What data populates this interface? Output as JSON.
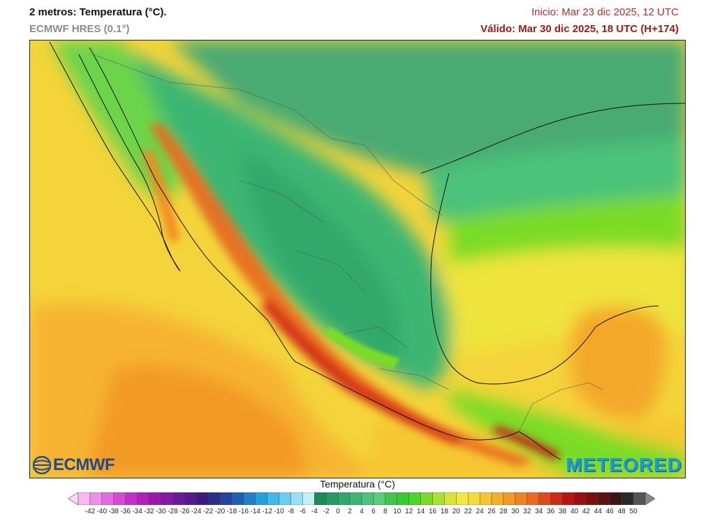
{
  "header": {
    "title": "2 metros: Temperatura (°C).",
    "model": "ECMWF HRES (0.1°)",
    "init": "Inicio: Mar 23 dic 2025, 12 UTC",
    "valid": "Válido: Mar 30 dic 2025, 18 UTC (H+174)"
  },
  "logos": {
    "left": "ECMWF",
    "right": "METEORED"
  },
  "legend": {
    "title": "Temperatura (°C)",
    "ticks": [
      "-42",
      "-40",
      "-38",
      "-36",
      "-34",
      "-32",
      "-30",
      "-28",
      "-26",
      "-24",
      "-22",
      "-20",
      "-18",
      "-16",
      "-14",
      "-12",
      "-10",
      "-8",
      "-6",
      "-4",
      "-2",
      "0",
      "2",
      "4",
      "6",
      "8",
      "10",
      "12",
      "14",
      "16",
      "18",
      "20",
      "22",
      "24",
      "26",
      "28",
      "30",
      "32",
      "34",
      "36",
      "38",
      "40",
      "42",
      "44",
      "46",
      "48",
      "50"
    ],
    "colors": [
      "#ffd9ff",
      "#f7b8f4",
      "#ee8fe9",
      "#e46bde",
      "#d848d2",
      "#c62ec6",
      "#b21fb9",
      "#9a18ae",
      "#821aa5",
      "#6a1a9a",
      "#561a8e",
      "#3e1980",
      "#2a2e8a",
      "#24449e",
      "#2060b4",
      "#2080c8",
      "#24a0dc",
      "#40b8e8",
      "#6ccdef",
      "#9cdff4",
      "#c4eef8",
      "#1a8a5a",
      "#259a62",
      "#30a86a",
      "#3cb673",
      "#4cc27a",
      "#5ccc7e",
      "#44c44a",
      "#34cc30",
      "#4cd628",
      "#7adc28",
      "#a8e230",
      "#d4e63a",
      "#f0e840",
      "#f6da3a",
      "#f6c632",
      "#f4b02c",
      "#f29a26",
      "#ef8222",
      "#ea6a1e",
      "#e04a1a",
      "#d02a16",
      "#b81414",
      "#9a1010",
      "#7a1010",
      "#5a1212",
      "#3e1414",
      "#2a2a2a",
      "#555555",
      "#888888"
    ]
  }
}
